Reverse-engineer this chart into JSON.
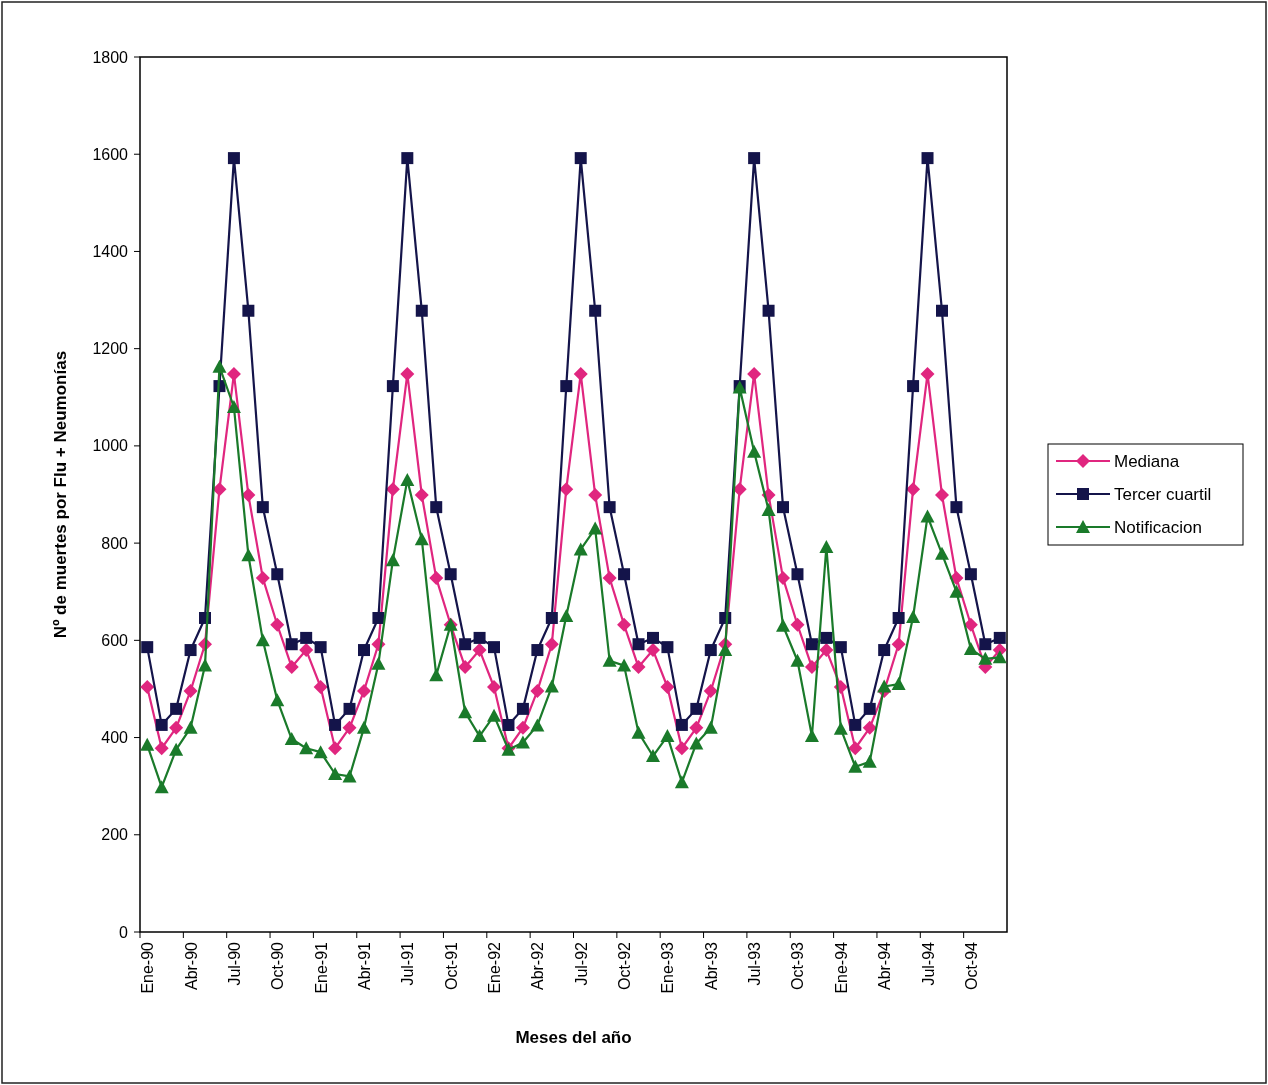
{
  "chart_data": {
    "type": "line",
    "xlabel": "Meses del año",
    "ylabel": "Nº de muertes por Flu + Neumonías",
    "categories": [
      "Ene-90",
      null,
      null,
      "Abr-90",
      null,
      null,
      "Jul-90",
      null,
      null,
      "Oct-90",
      null,
      null,
      "Ene-91",
      null,
      null,
      "Abr-91",
      null,
      null,
      "Jul-91",
      null,
      null,
      "Oct-91",
      null,
      null,
      "Ene-92",
      null,
      null,
      "Abr-92",
      null,
      null,
      "Jul-92",
      null,
      null,
      "Oct-92",
      null,
      null,
      "Ene-93",
      null,
      null,
      "Abr-93",
      null,
      null,
      "Jul-93",
      null,
      null,
      "Oct-93",
      null,
      null,
      "Ene-94",
      null,
      null,
      "Abr-94",
      null,
      null,
      "Jul-94",
      null,
      null,
      "Oct-94",
      null,
      null
    ],
    "series": [
      {
        "name": "Mediana",
        "color": "#e0267f",
        "marker": "diamond",
        "values": [
          504,
          378,
          420,
          496,
          592,
          911,
          1148,
          899,
          728,
          632,
          545,
          580,
          504,
          378,
          420,
          496,
          592,
          911,
          1148,
          899,
          728,
          632,
          545,
          580,
          504,
          378,
          420,
          496,
          592,
          911,
          1148,
          899,
          728,
          632,
          545,
          580,
          504,
          378,
          420,
          496,
          592,
          911,
          1148,
          899,
          728,
          632,
          545,
          580,
          504,
          378,
          420,
          496,
          592,
          911,
          1148,
          899,
          728,
          632,
          545,
          580
        ]
      },
      {
        "name": "Tercer cuartil",
        "color": "#14144a",
        "marker": "square",
        "values": [
          586,
          426,
          459,
          580,
          646,
          1123,
          1592,
          1278,
          874,
          736,
          592,
          605,
          586,
          426,
          459,
          580,
          646,
          1123,
          1592,
          1278,
          874,
          736,
          592,
          605,
          586,
          426,
          459,
          580,
          646,
          1123,
          1592,
          1278,
          874,
          736,
          592,
          605,
          586,
          426,
          459,
          580,
          646,
          1123,
          1592,
          1278,
          874,
          736,
          592,
          605,
          586,
          426,
          459,
          580,
          646,
          1123,
          1592,
          1278,
          874,
          736,
          592,
          605
        ]
      },
      {
        "name": "Notificacion",
        "color": "#1a7a2a",
        "marker": "triangle",
        "values": [
          385,
          298,
          375,
          420,
          548,
          1163,
          1080,
          775,
          600,
          477,
          397,
          378,
          370,
          325,
          320,
          420,
          552,
          765,
          930,
          808,
          528,
          632,
          452,
          403,
          445,
          375,
          390,
          425,
          505,
          650,
          787,
          830,
          558,
          548,
          410,
          362,
          403,
          308,
          388,
          420,
          580,
          1120,
          988,
          868,
          630,
          558,
          403,
          792,
          418,
          340,
          350,
          505,
          510,
          648,
          855,
          778,
          700,
          582,
          562,
          565
        ]
      }
    ],
    "ylim": [
      0,
      1800
    ],
    "yticks": [
      0,
      200,
      400,
      600,
      800,
      1000,
      1200,
      1400,
      1600,
      1800
    ],
    "legend": "right"
  }
}
